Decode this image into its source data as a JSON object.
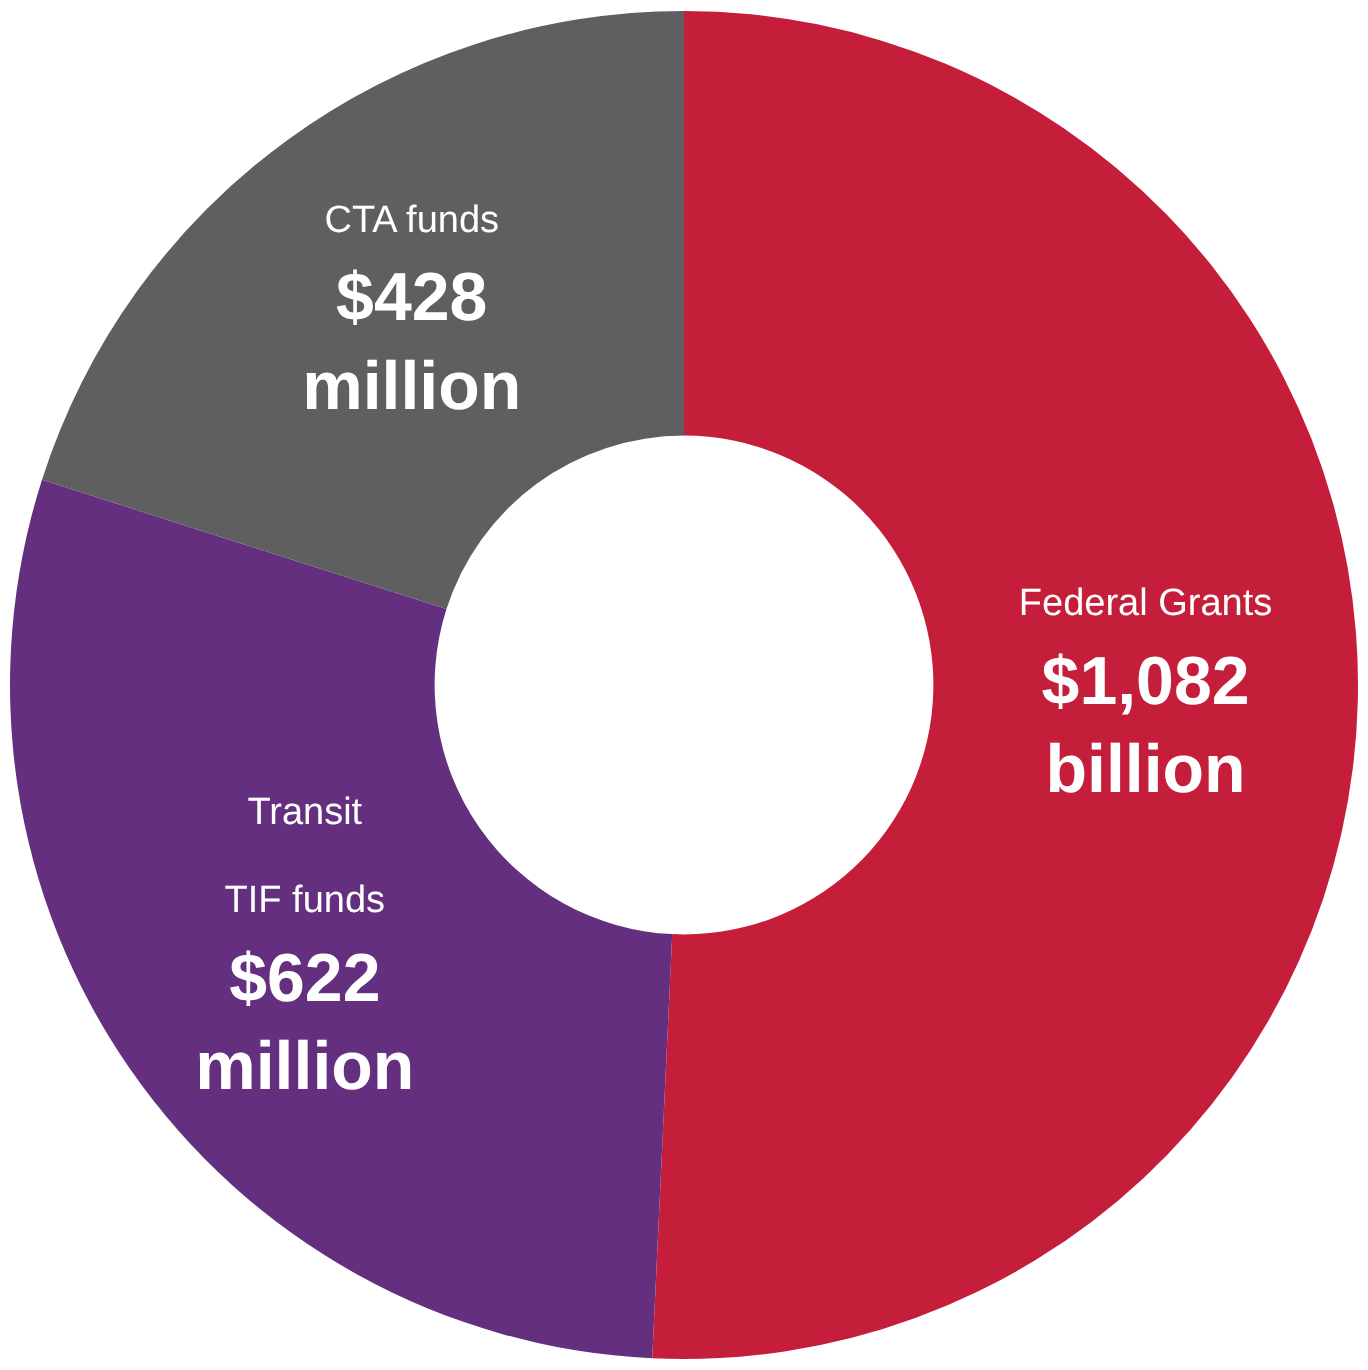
{
  "chart_data": {
    "type": "donut",
    "categories": [
      "Federal Grants",
      "Transit\nTIF funds",
      "CTA funds"
    ],
    "values": [
      1082,
      622,
      428
    ],
    "value_labels": [
      "$1,082 billion",
      "$622 million",
      "$428 million"
    ],
    "colors": [
      "#c41e3a",
      "#642f7f",
      "#5f5f5f"
    ],
    "legend": false
  }
}
